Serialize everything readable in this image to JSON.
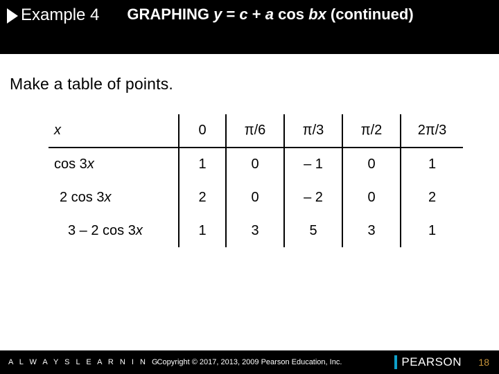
{
  "header": {
    "example_label": "Example 4",
    "title_prefix": "GRAPHING ",
    "title_eq_y": "y",
    "title_eq_mid": " = ",
    "title_eq_c": "c",
    "title_eq_plus": " + ",
    "title_eq_a": "a",
    "title_eq_cos": " cos ",
    "title_eq_bx": "bx",
    "title_suffix": " (continued)"
  },
  "instruction": "Make a table of points.",
  "table": {
    "rows": [
      {
        "label_html": "<span class='ital'>x</span>",
        "indent": "",
        "cells": [
          "0",
          "π/6",
          "π/3",
          "π/2",
          "2π/3"
        ]
      },
      {
        "label_html": "cos 3<span class='ital'>x</span>",
        "indent": "",
        "cells": [
          "1",
          "0",
          "– 1",
          "0",
          "1"
        ]
      },
      {
        "label_html": "2 cos 3<span class='ital'>x</span>",
        "indent": "indent1",
        "cells": [
          "2",
          "0",
          "– 2",
          "0",
          "2"
        ]
      },
      {
        "label_html": "3 – 2 cos 3<span class='ital'>x</span>",
        "indent": "indent2",
        "cells": [
          "1",
          "3",
          "5",
          "3",
          "1"
        ]
      }
    ],
    "col_classes": [
      "c1",
      "c2",
      "c3",
      "c4",
      "c5"
    ]
  },
  "footer": {
    "always": "A L W A Y S   L E A R N I N G",
    "copyright": "Copyright © 2017, 2013, 2009 Pearson Education, Inc.",
    "brand": "PEARSON",
    "page": "18"
  },
  "colors": {
    "header_bg": "#000000",
    "accent_bar": "#0ea0c9",
    "pagenum": "#c9943a"
  }
}
